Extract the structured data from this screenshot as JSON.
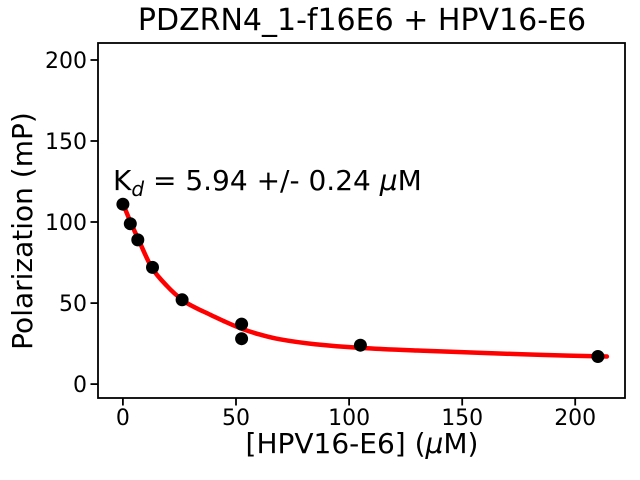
{
  "chart_data": {
    "type": "scatter",
    "title": "PDZRN4_1-f16E6 + HPV16-E6",
    "xlabel": "[HPV16-E6] (μM)",
    "ylabel": "Polarization (mP)",
    "annotation": "K_d = 5.94 +/- 0.24 μM",
    "kd_value_uM": 5.94,
    "kd_error_uM": 0.24,
    "xlim": [
      -11,
      222
    ],
    "ylim": [
      -8.6,
      210.5
    ],
    "x_ticks": [
      0,
      50,
      100,
      150,
      200
    ],
    "y_ticks": [
      0,
      50,
      100,
      150,
      200
    ],
    "grid": false,
    "legend": "none",
    "series": [
      {
        "name": "measured-points",
        "type": "scatter",
        "color": "#000000",
        "x": [
          0,
          3.3,
          6.6,
          13.1,
          26.2,
          52.5,
          52.5,
          105,
          210
        ],
        "y": [
          111,
          99,
          89,
          72,
          52,
          37,
          28,
          24,
          17
        ]
      },
      {
        "name": "fit-curve",
        "type": "line",
        "color": "#ff0000",
        "points": [
          [
            0,
            111.5
          ],
          [
            3.85,
            98.5
          ],
          [
            7.1,
            88.6
          ],
          [
            12.8,
            71.8
          ],
          [
            19.5,
            60.5
          ],
          [
            26.5,
            51.7
          ],
          [
            32,
            47.2
          ],
          [
            38.5,
            42.9
          ],
          [
            45,
            38.6
          ],
          [
            52.5,
            34.2
          ],
          [
            60,
            30.8
          ],
          [
            69.5,
            27.6
          ],
          [
            85,
            24.6
          ],
          [
            105,
            22.3
          ],
          [
            130,
            20.7
          ],
          [
            160,
            19.2
          ],
          [
            185,
            18.0
          ],
          [
            214,
            17.0
          ]
        ]
      }
    ]
  },
  "parts": {
    "kd_k": "K",
    "kd_sub": "d",
    "kd_rest": " = 5.94 +/- 0.24 ",
    "kd_mu": "μ",
    "kd_unit": "M",
    "xlabel_pre": "[HPV16-E6] (",
    "xlabel_mu": "μ",
    "xlabel_post": "M)"
  },
  "style": {
    "fit_line_color": "#ff0000",
    "marker_color": "#000000",
    "axis_color": "#000000",
    "background_color": "#ffffff"
  }
}
